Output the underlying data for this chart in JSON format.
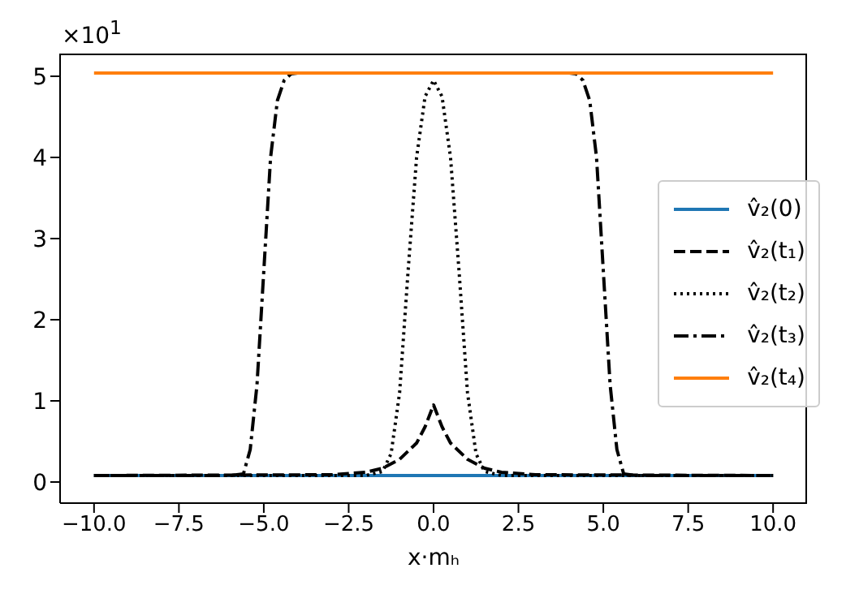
{
  "chart_data": {
    "type": "line",
    "xlabel": "x·mₕ",
    "annotations": [
      "×10$^{1}$"
    ],
    "xlim": [
      -11,
      11
    ],
    "xticks": [
      {
        "value": -10,
        "label": "−10.0"
      },
      {
        "value": -7.5,
        "label": "−7.5"
      },
      {
        "value": -5,
        "label": "−5.0"
      },
      {
        "value": -2.5,
        "label": "−2.5"
      },
      {
        "value": 0,
        "label": "0.0"
      },
      {
        "value": 2.5,
        "label": "2.5"
      },
      {
        "value": 5,
        "label": "5.0"
      },
      {
        "value": 7.5,
        "label": "7.5"
      },
      {
        "value": 10,
        "label": "10.0"
      }
    ],
    "ylim": [
      -0.26,
      5.28
    ],
    "yticks": [
      0,
      1,
      2,
      3,
      4,
      5
    ],
    "legend": "right",
    "marker": "none",
    "series": [
      {
        "name": "v̂₂(0)",
        "color": "#1f77b4",
        "line_style": "solid",
        "x": [
          -10,
          10
        ],
        "values": [
          0.08,
          0.08
        ]
      },
      {
        "name": "v̂₂(t₁)",
        "color": "#000000",
        "line_style": "dashed",
        "x": [
          -10,
          -3,
          -2,
          -1.5,
          -1,
          -0.5,
          -0.25,
          0,
          0.25,
          0.5,
          1,
          1.5,
          2,
          3,
          10
        ],
        "values": [
          0.08,
          0.09,
          0.12,
          0.17,
          0.28,
          0.48,
          0.68,
          0.95,
          0.68,
          0.48,
          0.28,
          0.17,
          0.12,
          0.09,
          0.08
        ]
      },
      {
        "name": "v̂₂(t₂)",
        "color": "#000000",
        "line_style": "dotted",
        "x": [
          -10,
          -2,
          -1.5,
          -1.25,
          -1,
          -0.75,
          -0.5,
          -0.25,
          0,
          0.25,
          0.5,
          0.75,
          1,
          1.25,
          1.5,
          2,
          10
        ],
        "values": [
          0.08,
          0.08,
          0.13,
          0.35,
          1.1,
          2.6,
          4.0,
          4.75,
          4.95,
          4.75,
          4.0,
          2.6,
          1.1,
          0.35,
          0.13,
          0.08,
          0.08
        ]
      },
      {
        "name": "v̂₂(t₃)",
        "color": "#000000",
        "line_style": "dashdot",
        "x": [
          -10,
          -6,
          -5.6,
          -5.4,
          -5.2,
          -5,
          -4.8,
          -4.6,
          -4.4,
          -4.2,
          -4,
          0,
          4,
          4.2,
          4.4,
          4.6,
          4.8,
          5,
          5.2,
          5.4,
          5.6,
          6,
          10
        ],
        "values": [
          0.08,
          0.08,
          0.1,
          0.4,
          1.2,
          2.6,
          4.0,
          4.7,
          4.95,
          5.03,
          5.04,
          5.04,
          5.04,
          5.03,
          4.95,
          4.7,
          4.0,
          2.6,
          1.2,
          0.4,
          0.1,
          0.08,
          0.08
        ]
      },
      {
        "name": "v̂₂(t₄)",
        "color": "#ff7f0e",
        "line_style": "solid",
        "x": [
          -10,
          10
        ],
        "values": [
          5.04,
          5.04
        ]
      }
    ]
  }
}
